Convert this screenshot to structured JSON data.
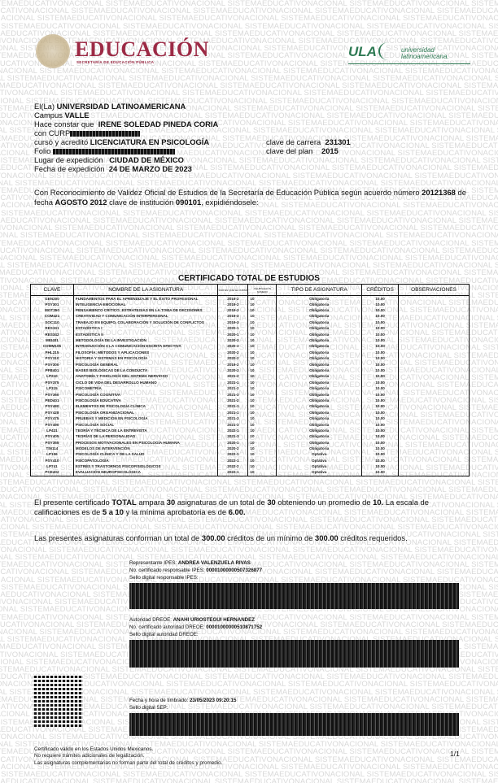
{
  "watermark": "SISTEMAEDUCATIVONACIONAL",
  "header": {
    "sep_title": "EDUCACIÓN",
    "sep_subtitle": "SECRETARÍA DE EDUCACIÓN PÚBLICA",
    "ula_mark": "ULA",
    "ula_name_1": "universidad",
    "ula_name_2": "latinoamericana."
  },
  "info": {
    "inst_label": "El(La)",
    "inst": "UNIVERSIDAD LATINOAMERICANA",
    "campus_label": "Campus",
    "campus": "VALLE",
    "student_label": "Hace constar que",
    "student": "IRENE SOLEDAD PINEDA CORIA",
    "curp_label": "con CURP",
    "program_label": "cursó y acreditó",
    "program": "LICENCIATURA EN PSICOLOGÍA",
    "folio_label": "Folio",
    "place_label": "Lugar de expedición",
    "place": "CIUDAD DE MÉXICO",
    "date_label": "Fecha de expedición",
    "date": "24 DE MARZO DE 2023",
    "career_key_label": "clave de carrera",
    "career_key": "231301",
    "plan_label": "clave del plan",
    "plan": "2015"
  },
  "rvoe": {
    "t1": "Con Reconocimiento de Validez Oficial de Estudios de la Secretaría de Educación Pública según acuerdo número",
    "agreement": "20121368",
    "t2": "de fecha",
    "agreement_date": "AGOSTO 2012",
    "t3": "clave de institución",
    "inst_key": "090101",
    "t4": ", expidiéndosele:"
  },
  "table": {
    "title": "CERTIFICADO TOTAL DE ESTUDIOS",
    "headers": [
      "CLAVE",
      "NOMBRE DE LA ASIGNATURA",
      "AÑO EN QUE SE CURSÓ",
      "CALIFICACIÓN NÚMERO",
      "TIPO DE ASIGNATURA",
      "CRÉDITOS",
      "OBSERVACIONES"
    ],
    "rows": [
      [
        "GEN200",
        "FUNDAMENTOS PARA EL APRENDIZAJE Y EL ÉXITO PROFESIONAL",
        "2019-2",
        "10",
        "Obligatoria",
        "10.00",
        ""
      ],
      [
        "PSY301",
        "INTELIGENCIA EMOCIONAL",
        "2019-2",
        "10",
        "Obligatoria",
        "10.00",
        ""
      ],
      [
        "MGT350",
        "PENSAMIENTO CRÍTICO: ESTRATEGIAS EN LA TOMA DE DECISIONES",
        "2019-3",
        "10",
        "Obligatoria",
        "10.00",
        ""
      ],
      [
        "COM421",
        "CREATIVIDAD Y COMUNICACIÓN INTERPERSONAL",
        "2019-3",
        "10",
        "Obligatoria",
        "10.00",
        ""
      ],
      [
        "SOC110",
        "TRABAJO EN EQUIPO, COLABORACIÓN Y SOLUCIÓN DE CONFLICTOS",
        "2019-3",
        "10",
        "Obligatoria",
        "10.00",
        ""
      ],
      [
        "RES341",
        "ESTADÍSTICA I",
        "2020-1",
        "10",
        "Obligatoria",
        "10.00",
        ""
      ],
      [
        "RES342",
        "ESTADÍSTICA II",
        "2020-1",
        "10",
        "Obligatoria",
        "10.00",
        ""
      ],
      [
        "MEI401",
        "METODOLOGÍA DE LA INVESTIGACIÓN",
        "2020-3",
        "10",
        "Obligatoria",
        "10.00",
        ""
      ],
      [
        "COMM105",
        "INTRODUCCIÓN A LA COMUNICACIÓN ESCRITA EFECTIVA",
        "2020-3",
        "10",
        "Obligatoria",
        "10.00",
        ""
      ],
      [
        "PHL215",
        "FILOSOFÍA: MÉTODOS Y APLICACIONES",
        "2020-2",
        "10",
        "Obligatoria",
        "10.00",
        ""
      ],
      [
        "PSY310",
        "HISTORIA Y SISTEMAS EN PSICOLOGÍA",
        "2020-2",
        "10",
        "Obligatoria",
        "10.00",
        ""
      ],
      [
        "PSY300",
        "PSICOLOGÍA GENERAL",
        "2019-2",
        "10",
        "Obligatoria",
        "10.00",
        ""
      ],
      [
        "PFB401",
        "BASES BIOLÓGICAS DE LA CONDUCTA",
        "2020-3",
        "10",
        "Obligatoria",
        "10.00",
        ""
      ],
      [
        "LP210",
        "ANATOMÍA Y FISIOLOGÍA DEL SISTEMA NERVIOSO",
        "2021-2",
        "10",
        "Obligatoria",
        "10.00",
        ""
      ],
      [
        "PSY375",
        "CICLO DE VIDA DEL DESARROLLO HUMANO",
        "2021-1",
        "10",
        "Obligatoria",
        "10.00",
        ""
      ],
      [
        "LP315",
        "PSICOMETRÍA",
        "2021-2",
        "10",
        "Obligatoria",
        "10.00",
        ""
      ],
      [
        "PSY360",
        "PSICOLOGÍA COGNITIVA",
        "2021-3",
        "10",
        "Obligatoria",
        "10.00",
        ""
      ],
      [
        "PED401",
        "PSICOLOGÍA EDUCATIVA",
        "2021-2",
        "10",
        "Obligatoria",
        "10.00",
        ""
      ],
      [
        "PSY480",
        "ELEMENTOS DE PSICOLOGÍA CLÍNICA",
        "2021-1",
        "10",
        "Obligatoria",
        "10.00",
        ""
      ],
      [
        "PSY428",
        "PSICOLOGÍA ORGANIZACIONAL",
        "2021-1",
        "10",
        "Obligatoria",
        "10.00",
        ""
      ],
      [
        "PSY475",
        "PRUEBAS Y MEDICIÓN EN PSICOLOGÍA",
        "2021-3",
        "10",
        "Obligatoria",
        "10.00",
        ""
      ],
      [
        "PSY490",
        "PSICOLOGÍA SOCIAL",
        "2021-3",
        "10",
        "Obligatoria",
        "10.00",
        ""
      ],
      [
        "LP421",
        "TEORÍA Y TÉCNICA DE LA ENTREVISTA",
        "2022-1",
        "10",
        "Obligatoria",
        "10.00",
        ""
      ],
      [
        "PSY405",
        "TEORÍAS DE LA PERSONALIDAD",
        "2021-3",
        "10",
        "Obligatoria",
        "10.00",
        ""
      ],
      [
        "PSY355",
        "PROCESOS MOTIVACIONALES EN PSICOLOGÍA HUMANA",
        "2020-1",
        "10",
        "Obligatoria",
        "10.00",
        ""
      ],
      [
        "TIN114",
        "MODELOS DE INTERVENCIÓN",
        "2020-2",
        "10",
        "Obligatoria",
        "10.00",
        ""
      ],
      [
        "LP106",
        "PSICOLOGÍA CLÍNICA Y DE LA SALUD",
        "2022-1",
        "10",
        "Optativa",
        "10.00",
        ""
      ],
      [
        "PSY410",
        "PSICOPATOLOGÍA",
        "2022-1",
        "10",
        "Optativa",
        "10.00",
        ""
      ],
      [
        "LP741",
        "ESTRÉS Y TRASTORNOS PSICOFISIOLÓGICOS",
        "2022-2",
        "10",
        "Optativa",
        "10.00",
        ""
      ],
      [
        "PCE402",
        "EVALUACIÓN NEUROPSICOLÓGICA",
        "2022-1",
        "10",
        "Optativa",
        "10.00",
        ""
      ]
    ]
  },
  "summary": {
    "s1": "El presente certificado",
    "total_word": "TOTAL",
    "s2": "ampara",
    "count": "30",
    "s3": "asignaturas de un total de",
    "total": "30",
    "s4": "obteniendo un promedio de",
    "avg": "10.",
    "s5": "La escala de calificaciones es de",
    "scale": "5 a 10",
    "s6": "y la mínima aprobatoria es de",
    "min": "6.00.",
    "c1": "Las presentes asignaturas conforman un total de",
    "credits": "300.00",
    "c2": "créditos de un mínimo de",
    "min_credits": "300.00",
    "c3": "créditos requeridos."
  },
  "signatures": {
    "ipes_label": "Representante IPES:",
    "ipes_name": "ANDREA VALENZUELA RIVAS",
    "ipes_cert_label": "No. certificado responsable IPES:",
    "ipes_cert": "00001000000507326877",
    "ipes_seal_label": "Sello digital responsable IPES:",
    "dreoe_label": "Autoridad DREOE:",
    "dreoe_name": "ANAHI URIOSTEGUI HERNANDEZ",
    "dreoe_cert_label": "No. certificado autoridad DREOE:",
    "dreoe_cert": "00001000000510871752",
    "dreoe_seal_label": "Sello digital autoridad DREOE:",
    "stamp_label": "Fecha y hora de timbrado:",
    "stamp": "23/05/2023 09:20:15",
    "sep_seal_label": "Sello digital SEP:"
  },
  "footer": {
    "l1": "Certificado válido en los Estados Unidos Mexicanos.",
    "l2": "No requiere trámites adicionales de legalización.",
    "l3": "Las asignaturas complementarias no forman parte del total de créditos y promedio.",
    "page": "1/1"
  }
}
